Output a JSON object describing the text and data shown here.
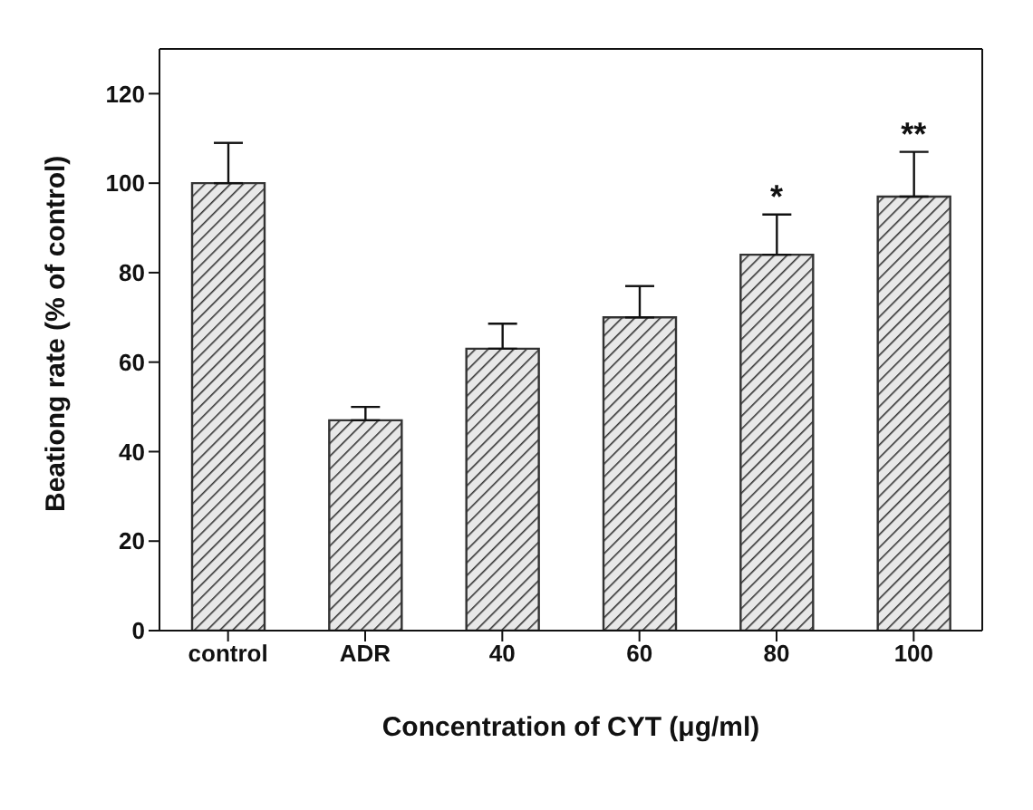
{
  "chart_data": {
    "type": "bar",
    "xlabel": "Concentration of CYT (μg/ml)",
    "ylabel": "Beationg rate (% of control)",
    "categories": [
      "control",
      "ADR",
      "40",
      "60",
      "80",
      "100"
    ],
    "values": [
      100,
      47,
      63,
      70,
      84,
      97
    ],
    "errors": [
      [
        100,
        109
      ],
      [
        47,
        50
      ],
      [
        63,
        68.6
      ],
      [
        70,
        77
      ],
      [
        84,
        93
      ],
      [
        97,
        107
      ]
    ],
    "color": "#333333",
    "ylim": [
      0,
      130
    ],
    "yticks": [
      0,
      20,
      40,
      60,
      80,
      100,
      120
    ],
    "grid": false,
    "legend": false,
    "annotations": [
      {
        "text": "*",
        "x": "80",
        "y": 93
      },
      {
        "text": "**",
        "x": "100",
        "y": 107
      }
    ]
  }
}
